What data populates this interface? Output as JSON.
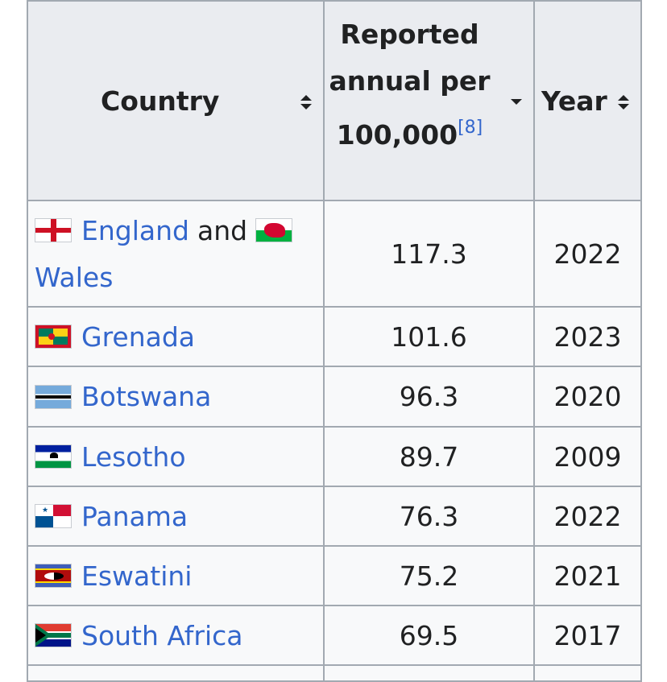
{
  "table": {
    "headers": {
      "country": "Country",
      "rate": "Reported annual per 100,000",
      "rate_ref": "[8]",
      "year": "Year"
    },
    "rows": [
      {
        "flag": "england-flag-icon",
        "country": "England",
        "conj": "and",
        "flag2": "wales-flag-icon",
        "country2": "Wales",
        "rate": "117.3",
        "year": "2022"
      },
      {
        "flag": "grenada-flag-icon",
        "country": "Grenada",
        "rate": "101.6",
        "year": "2023"
      },
      {
        "flag": "botswana-flag-icon",
        "country": "Botswana",
        "rate": "96.3",
        "year": "2020"
      },
      {
        "flag": "lesotho-flag-icon",
        "country": "Lesotho",
        "rate": "89.7",
        "year": "2009"
      },
      {
        "flag": "panama-flag-icon",
        "country": "Panama",
        "rate": "76.3",
        "year": "2022"
      },
      {
        "flag": "eswatini-flag-icon",
        "country": "Eswatini",
        "rate": "75.2",
        "year": "2021"
      },
      {
        "flag": "south-africa-flag-icon",
        "country": "South Africa",
        "rate": "69.5",
        "year": "2017"
      }
    ]
  },
  "colors": {
    "link": "#3366cc",
    "header_bg": "#eaecf0",
    "cell_bg": "#f8f9fa",
    "border": "#a2a9b1",
    "text": "#202122"
  }
}
